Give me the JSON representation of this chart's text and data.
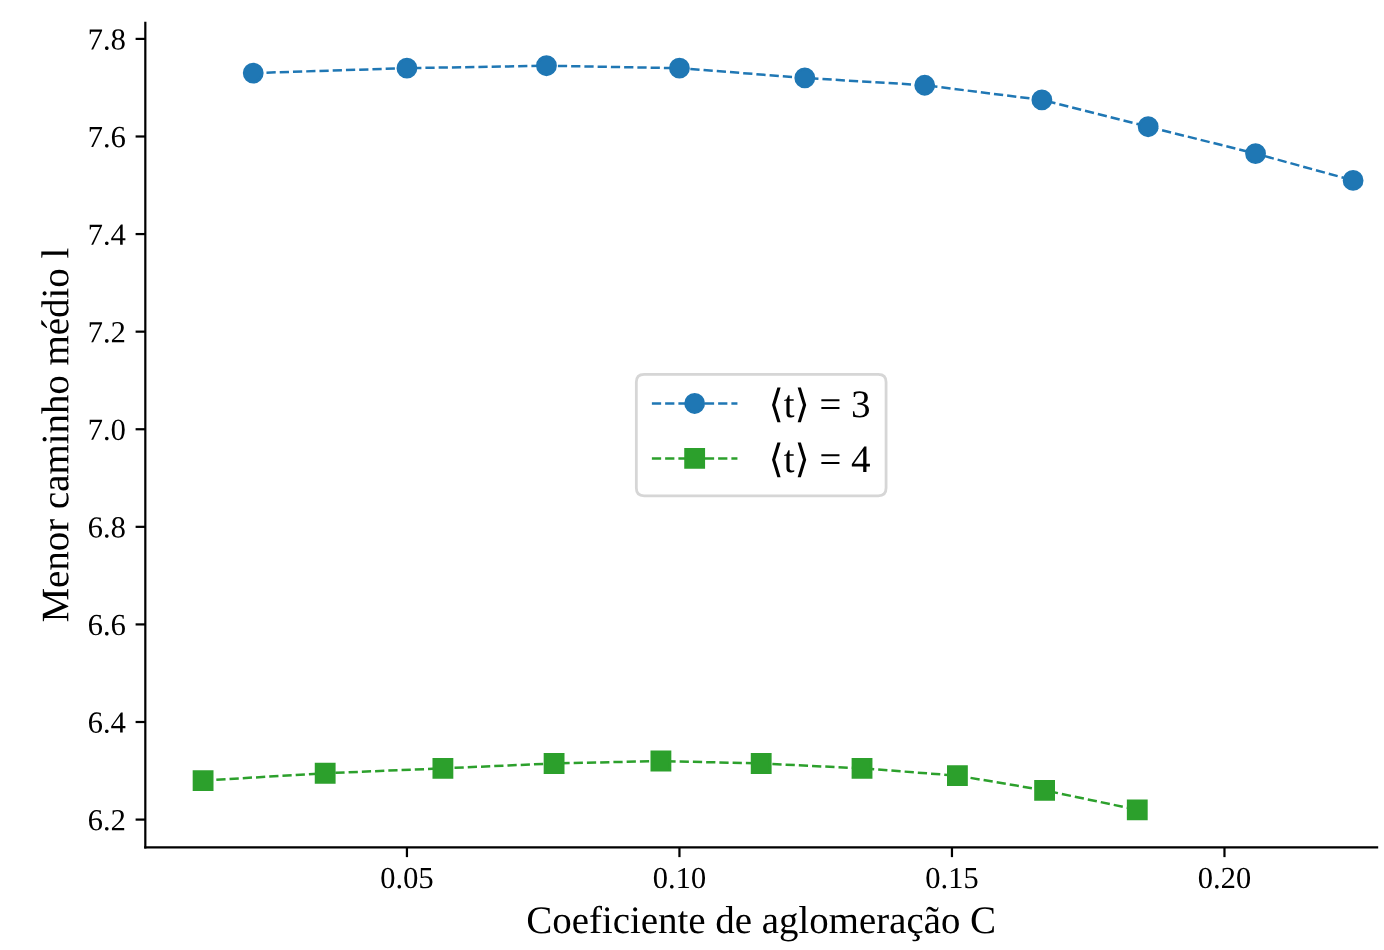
{
  "chart_data": {
    "type": "line",
    "xlabel": "Coeficiente de aglomeração C",
    "ylabel": "Menor caminho médio l",
    "xlim": [
      0.002,
      0.228
    ],
    "xticks": [
      0.05,
      {
        "value": 0.1,
        "label": "0.10"
      },
      0.15,
      {
        "value": 0.2,
        "label": "0.20"
      }
    ],
    "ylim": [
      6.143,
      7.833
    ],
    "yticks": [
      6.2,
      6.4,
      6.6,
      6.8,
      {
        "value": 7,
        "label": "7.0"
      },
      7.2,
      7.4,
      7.6,
      7.8
    ],
    "grid": false,
    "legend": "center",
    "line_style": "dashed",
    "series": [
      {
        "name": "⟨t⟩ = 3",
        "color": "#1f77b4",
        "marker": "circle",
        "x": [
          0.0218,
          0.05,
          0.0756,
          0.1,
          0.123,
          0.145,
          0.1665,
          0.186,
          0.2057,
          0.2236
        ],
        "values": [
          7.73,
          7.74,
          7.745,
          7.74,
          7.72,
          7.705,
          7.675,
          7.62,
          7.565,
          7.51
        ]
      },
      {
        "name": "⟨t⟩ = 4",
        "color": "#2ca02c",
        "marker": "square",
        "x": [
          0.0126,
          0.035,
          0.0566,
          0.077,
          0.0966,
          0.115,
          0.1335,
          0.151,
          0.167,
          0.184
        ],
        "values": [
          6.28,
          6.295,
          6.305,
          6.315,
          6.32,
          6.315,
          6.305,
          6.29,
          6.26,
          6.22
        ]
      }
    ]
  }
}
